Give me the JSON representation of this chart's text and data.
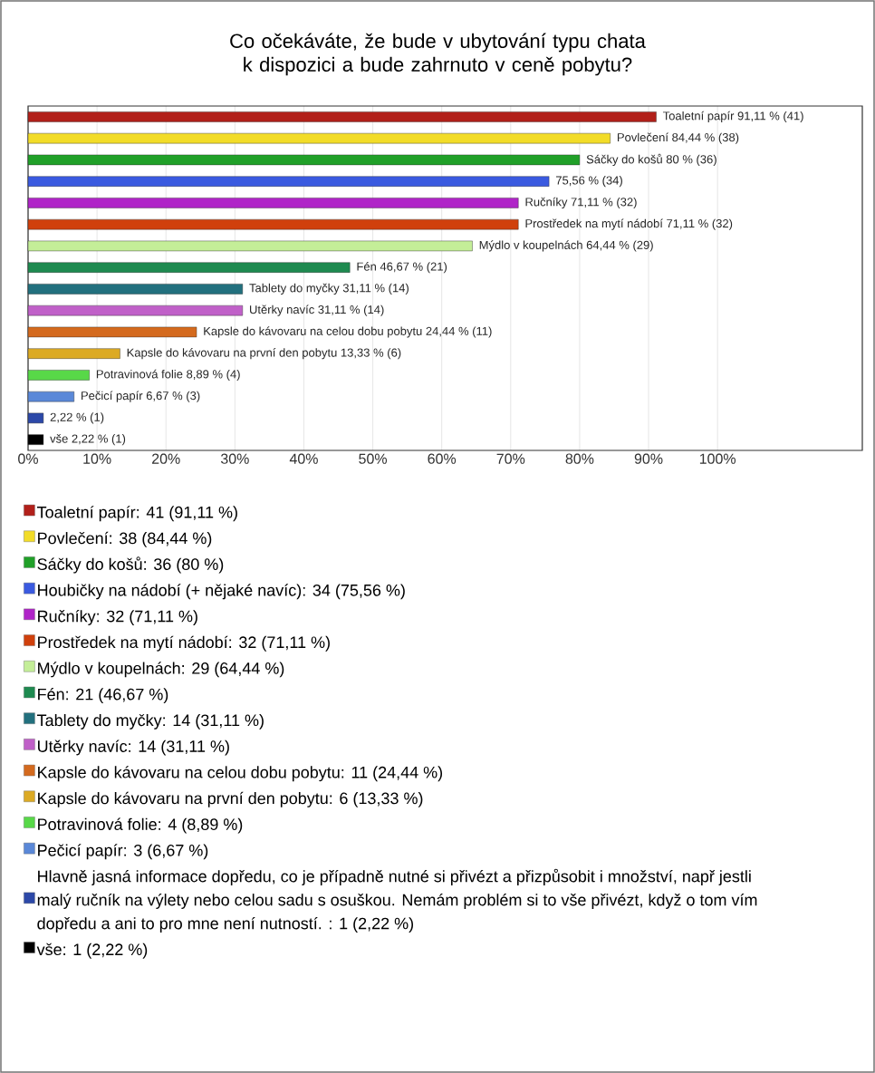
{
  "chart_data": {
    "type": "bar",
    "orientation": "horizontal",
    "title": "Co očekáváte, že bude v ubytování typu chata k dispozici a bude zahrnuto v ceně pobytu?",
    "categories": [
      null,
      null,
      null,
      null,
      null,
      null,
      null,
      null,
      null,
      null,
      null,
      null,
      null,
      null,
      null,
      null
    ],
    "xlim": [
      0,
      121
    ],
    "xticks": [
      {
        "value": 0,
        "label": "0%"
      },
      {
        "value": 10,
        "label": "10%"
      },
      {
        "value": 20,
        "label": "20%"
      },
      {
        "value": 30,
        "label": "30%"
      },
      {
        "value": 40,
        "label": "40%"
      },
      {
        "value": 50,
        "label": "50%"
      },
      {
        "value": 60,
        "label": "60%"
      },
      {
        "value": 70,
        "label": "70%"
      },
      {
        "value": 80,
        "label": "80%"
      },
      {
        "value": 90,
        "label": "90%"
      },
      {
        "value": 100,
        "label": "100%"
      }
    ],
    "grid": "x",
    "legend": "bottom",
    "series": [
      {
        "name": "Toaletní papír: 41 (91,11 %)",
        "color": "#b2201a",
        "values": [
          91.11,
          null,
          null,
          null,
          null,
          null,
          null,
          null,
          null,
          null,
          null,
          null,
          null,
          null,
          null,
          null
        ],
        "value_labels": [
          "Toaletní papír 91,11 % (41)",
          null,
          null,
          null,
          null,
          null,
          null,
          null,
          null,
          null,
          null,
          null,
          null,
          null,
          null,
          null
        ]
      },
      {
        "name": "Povlečení: 38 (84,44 %)",
        "color": "#f2dc28",
        "values": [
          null,
          84.44,
          null,
          null,
          null,
          null,
          null,
          null,
          null,
          null,
          null,
          null,
          null,
          null,
          null,
          null
        ],
        "value_labels": [
          null,
          "Povlečení 84,44 % (38)",
          null,
          null,
          null,
          null,
          null,
          null,
          null,
          null,
          null,
          null,
          null,
          null,
          null,
          null
        ]
      },
      {
        "name": "Sáčky do košů: 36 (80 %)",
        "color": "#20a028",
        "values": [
          null,
          null,
          80,
          null,
          null,
          null,
          null,
          null,
          null,
          null,
          null,
          null,
          null,
          null,
          null,
          null
        ],
        "value_labels": [
          null,
          null,
          "Sáčky do košů 80 % (36)",
          null,
          null,
          null,
          null,
          null,
          null,
          null,
          null,
          null,
          null,
          null,
          null,
          null
        ]
      },
      {
        "name": "Houbičky na nádobí (+ nějaké navíc): 34 (75,56 %)",
        "color": "#3a5ae0",
        "values": [
          null,
          null,
          null,
          75.56,
          null,
          null,
          null,
          null,
          null,
          null,
          null,
          null,
          null,
          null,
          null,
          null
        ],
        "value_labels": [
          null,
          null,
          null,
          "75,56 % (34)",
          null,
          null,
          null,
          null,
          null,
          null,
          null,
          null,
          null,
          null,
          null,
          null
        ]
      },
      {
        "name": "Ručníky: 32 (71,11 %)",
        "color": "#b024c8",
        "values": [
          null,
          null,
          null,
          null,
          71.11,
          null,
          null,
          null,
          null,
          null,
          null,
          null,
          null,
          null,
          null,
          null
        ],
        "value_labels": [
          null,
          null,
          null,
          null,
          "Ručníky 71,11 % (32)",
          null,
          null,
          null,
          null,
          null,
          null,
          null,
          null,
          null,
          null,
          null
        ]
      },
      {
        "name": "Prostředek na mytí nádobí: 32 (71,11 %)",
        "color": "#d0400c",
        "values": [
          null,
          null,
          null,
          null,
          null,
          71.11,
          null,
          null,
          null,
          null,
          null,
          null,
          null,
          null,
          null,
          null
        ],
        "value_labels": [
          null,
          null,
          null,
          null,
          null,
          "Prostředek na mytí nádobí 71,11 % (32)",
          null,
          null,
          null,
          null,
          null,
          null,
          null,
          null,
          null,
          null
        ]
      },
      {
        "name": "Mýdlo v koupelnách: 29 (64,44 %)",
        "color": "#c4ee98",
        "values": [
          null,
          null,
          null,
          null,
          null,
          null,
          64.44,
          null,
          null,
          null,
          null,
          null,
          null,
          null,
          null,
          null
        ],
        "value_labels": [
          null,
          null,
          null,
          null,
          null,
          null,
          "Mýdlo v koupelnách 64,44 % (29)",
          null,
          null,
          null,
          null,
          null,
          null,
          null,
          null,
          null
        ]
      },
      {
        "name": "Fén: 21 (46,67 %)",
        "color": "#1e8a50",
        "values": [
          null,
          null,
          null,
          null,
          null,
          null,
          null,
          46.67,
          null,
          null,
          null,
          null,
          null,
          null,
          null,
          null
        ],
        "value_labels": [
          null,
          null,
          null,
          null,
          null,
          null,
          null,
          "Fén 46,67 % (21)",
          null,
          null,
          null,
          null,
          null,
          null,
          null,
          null
        ]
      },
      {
        "name": "Tablety do myčky: 14 (31,11 %)",
        "color": "#22707e",
        "values": [
          null,
          null,
          null,
          null,
          null,
          null,
          null,
          null,
          31.11,
          null,
          null,
          null,
          null,
          null,
          null,
          null
        ],
        "value_labels": [
          null,
          null,
          null,
          null,
          null,
          null,
          null,
          null,
          "Tablety do myčky 31,11 % (14)",
          null,
          null,
          null,
          null,
          null,
          null,
          null
        ]
      },
      {
        "name": "Utěrky navíc: 14 (31,11 %)",
        "color": "#c060c8",
        "values": [
          null,
          null,
          null,
          null,
          null,
          null,
          null,
          null,
          null,
          31.11,
          null,
          null,
          null,
          null,
          null,
          null
        ],
        "value_labels": [
          null,
          null,
          null,
          null,
          null,
          null,
          null,
          null,
          null,
          "Utěrky navíc 31,11 % (14)",
          null,
          null,
          null,
          null,
          null,
          null
        ]
      },
      {
        "name": "Kapsle do kávovaru na celou dobu pobytu: 11 (24,44 %)",
        "color": "#d46a1e",
        "values": [
          null,
          null,
          null,
          null,
          null,
          null,
          null,
          null,
          null,
          null,
          24.44,
          null,
          null,
          null,
          null,
          null
        ],
        "value_labels": [
          null,
          null,
          null,
          null,
          null,
          null,
          null,
          null,
          null,
          null,
          "Kapsle do kávovaru na celou dobu pobytu 24,44 % (11)",
          null,
          null,
          null,
          null,
          null
        ]
      },
      {
        "name": "Kapsle do kávovaru na první den pobytu: 6 (13,33 %)",
        "color": "#dcaa24",
        "values": [
          null,
          null,
          null,
          null,
          null,
          null,
          null,
          null,
          null,
          null,
          null,
          13.33,
          null,
          null,
          null,
          null
        ],
        "value_labels": [
          null,
          null,
          null,
          null,
          null,
          null,
          null,
          null,
          null,
          null,
          null,
          "Kapsle do kávovaru na první den pobytu 13,33 % (6)",
          null,
          null,
          null,
          null
        ]
      },
      {
        "name": "Potravinová folie: 4 (8,89 %)",
        "color": "#58d848",
        "values": [
          null,
          null,
          null,
          null,
          null,
          null,
          null,
          null,
          null,
          null,
          null,
          null,
          8.89,
          null,
          null,
          null
        ],
        "value_labels": [
          null,
          null,
          null,
          null,
          null,
          null,
          null,
          null,
          null,
          null,
          null,
          null,
          "Potravinová folie 8,89 % (4)",
          null,
          null,
          null
        ]
      },
      {
        "name": "Pečicí papír: 3 (6,67 %)",
        "color": "#5a88d8",
        "values": [
          null,
          null,
          null,
          null,
          null,
          null,
          null,
          null,
          null,
          null,
          null,
          null,
          null,
          6.67,
          null,
          null
        ],
        "value_labels": [
          null,
          null,
          null,
          null,
          null,
          null,
          null,
          null,
          null,
          null,
          null,
          null,
          null,
          "Pečicí papír 6,67 % (3)",
          null,
          null
        ]
      },
      {
        "name": "Hlavně jasná informace dopředu, co je případně nutné si přivézt a přizpůsobit i množství, např jestli malý ručník na výlety nebo celou sadu s osuškou. Nemám problém si to vše přivézt, když o tom vím dopředu a ani to pro mne není nutností. : 1 (2,22 %)",
        "color": "#2c48a8",
        "values": [
          null,
          null,
          null,
          null,
          null,
          null,
          null,
          null,
          null,
          null,
          null,
          null,
          null,
          null,
          2.22,
          null
        ],
        "value_labels": [
          null,
          null,
          null,
          null,
          null,
          null,
          null,
          null,
          null,
          null,
          null,
          null,
          null,
          null,
          "2,22 % (1)",
          null
        ]
      },
      {
        "name": "vše: 1 (2,22 %)",
        "color": "#000000",
        "values": [
          null,
          null,
          null,
          null,
          null,
          null,
          null,
          null,
          null,
          null,
          null,
          null,
          null,
          null,
          null,
          2.22
        ],
        "value_labels": [
          null,
          null,
          null,
          null,
          null,
          null,
          null,
          null,
          null,
          null,
          null,
          null,
          null,
          null,
          null,
          "vše 2,22 % (1)"
        ]
      }
    ]
  }
}
